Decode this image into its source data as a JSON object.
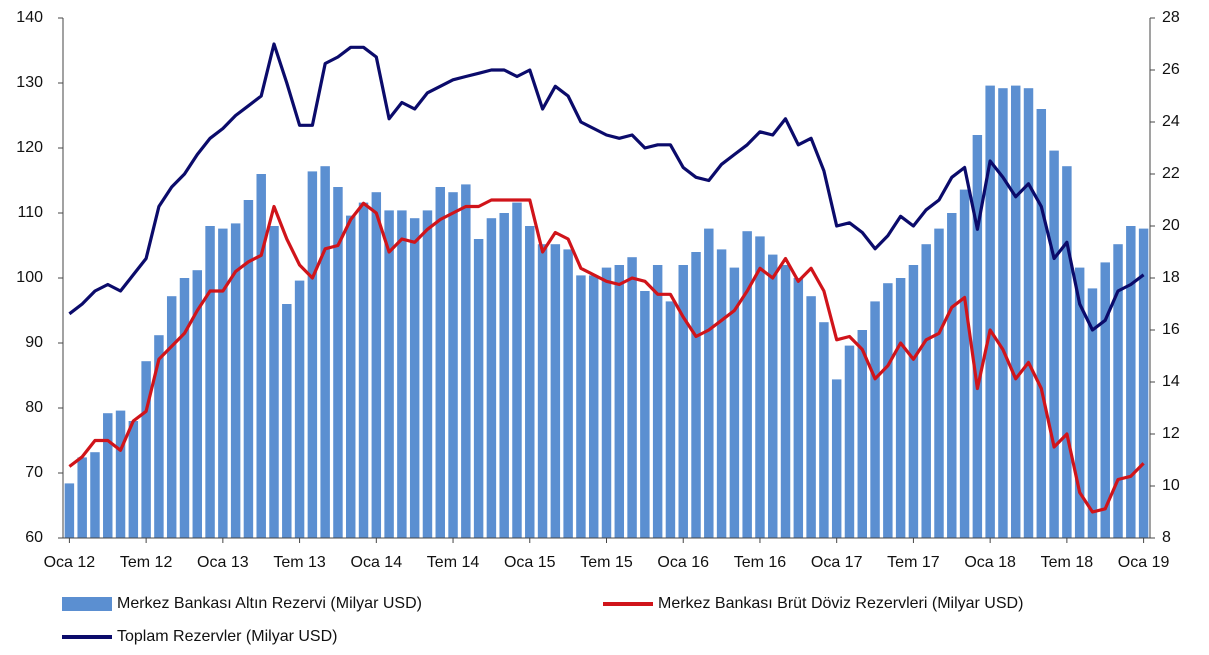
{
  "chart_data": {
    "type": "combo",
    "categories": [
      "Oca 12",
      null,
      null,
      null,
      null,
      null,
      "Tem 12",
      null,
      null,
      null,
      null,
      null,
      "Oca 13",
      null,
      null,
      null,
      null,
      null,
      "Tem 13",
      null,
      null,
      null,
      null,
      null,
      "Oca 14",
      null,
      null,
      null,
      null,
      null,
      "Tem 14",
      null,
      null,
      null,
      null,
      null,
      "Oca 15",
      null,
      null,
      null,
      null,
      null,
      "Tem 15",
      null,
      null,
      null,
      null,
      null,
      "Oca 16",
      null,
      null,
      null,
      null,
      null,
      "Tem 16",
      null,
      null,
      null,
      null,
      null,
      "Oca 17",
      null,
      null,
      null,
      null,
      null,
      "Tem 17",
      null,
      null,
      null,
      null,
      null,
      "Oca 18",
      null,
      null,
      null,
      null,
      null,
      "Tem 18",
      null,
      null,
      null,
      null,
      null,
      "Oca 19"
    ],
    "series": [
      {
        "name": "Merkez Bankası Altın Rezervi (Milyar USD)",
        "type": "bar",
        "axis": "y2",
        "color": "#5b8fd1",
        "values": [
          10.1,
          11.1,
          11.3,
          12.8,
          12.9,
          12.5,
          14.8,
          15.8,
          17.3,
          18,
          18.3,
          20,
          19.9,
          20.1,
          21,
          22,
          20,
          17,
          17.9,
          22.1,
          22.3,
          21.5,
          20.4,
          20.9,
          21.3,
          20.6,
          20.6,
          20.3,
          20.6,
          21.5,
          21.3,
          21.6,
          19.5,
          20.3,
          20.5,
          20.9,
          20,
          19.3,
          19.3,
          19.1,
          18.1,
          18.1,
          18.4,
          18.5,
          18.8,
          17.5,
          18.5,
          17.1,
          18.5,
          19,
          19.9,
          19.1,
          18.4,
          19.8,
          19.6,
          18.9,
          18.5,
          18,
          17.3,
          16.3,
          14.1,
          15.4,
          16,
          17.1,
          17.8,
          18,
          18.5,
          19.3,
          19.9,
          20.5,
          21.4,
          23.5,
          25.4,
          25.3,
          25.4,
          25.3,
          24.5,
          22.9,
          22.3,
          18.4,
          17.6,
          18.6,
          19.3,
          20,
          19.9
        ]
      },
      {
        "name": "Merkez Bankası Brüt Döviz Rezervleri (Milyar USD)",
        "type": "line",
        "color": "#d0141a",
        "values": [
          71,
          72.5,
          75,
          75,
          73.5,
          78,
          79.5,
          87.5,
          89.5,
          91.5,
          95,
          98,
          98,
          101,
          102.5,
          103.5,
          111,
          106,
          102,
          100,
          104.5,
          105,
          109,
          111.5,
          110,
          104,
          106,
          105.5,
          107.5,
          109,
          110,
          111,
          111,
          112,
          112,
          112,
          112,
          104,
          107,
          106,
          101.5,
          100.5,
          99.5,
          99,
          100,
          99.5,
          97.5,
          97.5,
          94,
          91,
          92,
          93.5,
          95,
          98,
          101.5,
          100,
          103,
          99.5,
          101.5,
          98,
          90.5,
          91,
          89,
          84.5,
          86.5,
          90,
          87.5,
          90.5,
          91.5,
          95.5,
          97,
          83,
          92,
          89,
          84.5,
          87,
          83,
          74,
          76,
          67,
          64,
          64.5,
          69,
          69.5,
          71.5
        ]
      },
      {
        "name": "Toplam Rezervler (Milyar USD)",
        "type": "line",
        "color": "#0b0b6b",
        "values": [
          94.5,
          96,
          98,
          99,
          98,
          100.5,
          103,
          111,
          114,
          116,
          119,
          121.5,
          123,
          125,
          126.5,
          128,
          136,
          130,
          123.5,
          123.5,
          133,
          134,
          135.5,
          135.5,
          134,
          124.5,
          127,
          126,
          128.5,
          129.5,
          130.5,
          131,
          131.5,
          132,
          132,
          131,
          132,
          126,
          129.5,
          128,
          124,
          123,
          122,
          121.5,
          122,
          120,
          120.5,
          120.5,
          117,
          115.5,
          115,
          117.5,
          119,
          120.5,
          122.5,
          122,
          124.5,
          120.5,
          121.5,
          116.5,
          108,
          108.5,
          107,
          104.5,
          106.5,
          109.5,
          108,
          110.5,
          112,
          115.5,
          117,
          107.5,
          118,
          115.5,
          112.5,
          114.5,
          111,
          103,
          105.5,
          96,
          92,
          93.5,
          98,
          99,
          100.5
        ]
      }
    ],
    "ylim": [
      60,
      140
    ],
    "yticks": [
      60,
      70,
      80,
      90,
      100,
      110,
      120,
      130,
      140
    ],
    "y2lim": [
      8,
      28
    ],
    "y2ticks": [
      8,
      10,
      12,
      14,
      16,
      18,
      20,
      22,
      24,
      26,
      28
    ]
  }
}
